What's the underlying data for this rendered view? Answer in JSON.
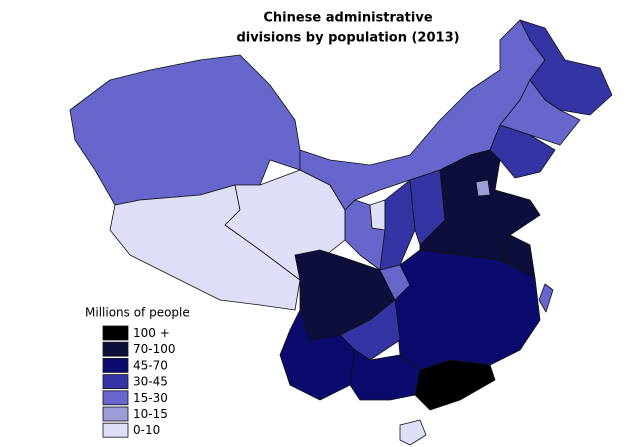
{
  "title_lines": [
    "Chinese administrative",
    "divisions by population (2013)"
  ],
  "legend": {
    "title": "Millions of people",
    "items": [
      {
        "label": "100 +",
        "color": "#000000"
      },
      {
        "label": "70-100",
        "color": "#0e0e3c"
      },
      {
        "label": "45-70",
        "color": "#0b0b6e"
      },
      {
        "label": "30-45",
        "color": "#3434a4"
      },
      {
        "label": "15-30",
        "color": "#6666cc"
      },
      {
        "label": "10-15",
        "color": "#9c9cd8"
      },
      {
        "label": "0-10",
        "color": "#dedef7"
      }
    ]
  }
}
